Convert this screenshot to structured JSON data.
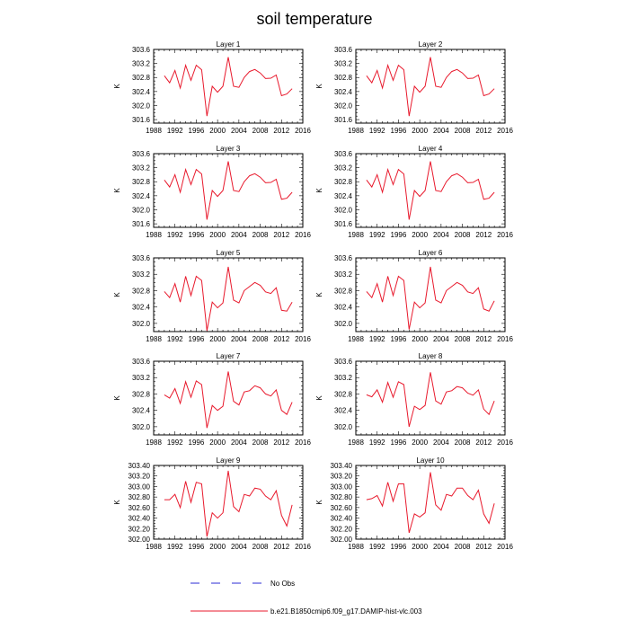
{
  "title": "soil temperature",
  "legend": {
    "obs_label": "No Obs",
    "model_label": "b.e21.B1850cmip6.f09_g17.DAMIP-hist-vlc.003",
    "obs_color": "#2b2bd6",
    "model_color": "#e8192c"
  },
  "chart_data": [
    {
      "type": "line",
      "title": "Layer 1",
      "ylabel": "K",
      "xlim": [
        1988,
        2016
      ],
      "ylim": [
        301.5,
        303.6
      ],
      "x_ticks": [
        "1988",
        "1992",
        "1996",
        "2000",
        "2004",
        "2008",
        "2012",
        "2016"
      ],
      "y_ticks": [
        "301.6",
        "302.0",
        "302.4",
        "302.8",
        "303.2",
        "303.6"
      ],
      "series": [
        {
          "name": "b.e21.B1850cmip6.f09_g17.DAMIP-hist-vlc.003",
          "x": [
            1990,
            1991,
            1992,
            1993,
            1994,
            1995,
            1996,
            1997,
            1998,
            1999,
            2000,
            2001,
            2002,
            2003,
            2004,
            2005,
            2006,
            2007,
            2008,
            2009,
            2010,
            2011,
            2012,
            2013,
            2014
          ],
          "values": [
            302.85,
            302.65,
            303.0,
            302.5,
            303.15,
            302.72,
            303.15,
            303.02,
            301.7,
            302.55,
            302.38,
            302.55,
            303.38,
            302.55,
            302.52,
            302.8,
            302.97,
            303.03,
            302.93,
            302.77,
            302.78,
            302.87,
            302.28,
            302.33,
            302.48
          ]
        }
      ]
    },
    {
      "type": "line",
      "title": "Layer 2",
      "ylabel": "K",
      "xlim": [
        1988,
        2016
      ],
      "ylim": [
        301.5,
        303.6
      ],
      "x_ticks": [
        "1988",
        "1992",
        "1996",
        "2000",
        "2004",
        "2008",
        "2012",
        "2016"
      ],
      "y_ticks": [
        "301.6",
        "302.0",
        "302.4",
        "302.8",
        "303.2",
        "303.6"
      ],
      "series": [
        {
          "name": "b.e21.B1850cmip6.f09_g17.DAMIP-hist-vlc.003",
          "x": [
            1990,
            1991,
            1992,
            1993,
            1994,
            1995,
            1996,
            1997,
            1998,
            1999,
            2000,
            2001,
            2002,
            2003,
            2004,
            2005,
            2006,
            2007,
            2008,
            2009,
            2010,
            2011,
            2012,
            2013,
            2014
          ],
          "values": [
            302.85,
            302.65,
            303.0,
            302.5,
            303.15,
            302.72,
            303.15,
            303.02,
            301.7,
            302.55,
            302.38,
            302.55,
            303.38,
            302.55,
            302.52,
            302.8,
            302.97,
            303.03,
            302.93,
            302.77,
            302.78,
            302.87,
            302.28,
            302.33,
            302.48
          ]
        }
      ]
    },
    {
      "type": "line",
      "title": "Layer 3",
      "ylabel": "K",
      "xlim": [
        1988,
        2016
      ],
      "ylim": [
        301.5,
        303.6
      ],
      "x_ticks": [
        "1988",
        "1992",
        "1996",
        "2000",
        "2004",
        "2008",
        "2012",
        "2016"
      ],
      "y_ticks": [
        "301.6",
        "302.0",
        "302.4",
        "302.8",
        "303.2",
        "303.6"
      ],
      "series": [
        {
          "name": "b.e21.B1850cmip6.f09_g17.DAMIP-hist-vlc.003",
          "x": [
            1990,
            1991,
            1992,
            1993,
            1994,
            1995,
            1996,
            1997,
            1998,
            1999,
            2000,
            2001,
            2002,
            2003,
            2004,
            2005,
            2006,
            2007,
            2008,
            2009,
            2010,
            2011,
            2012,
            2013,
            2014
          ],
          "values": [
            302.85,
            302.65,
            303.0,
            302.5,
            303.15,
            302.72,
            303.15,
            303.02,
            301.72,
            302.55,
            302.38,
            302.55,
            303.38,
            302.55,
            302.52,
            302.8,
            302.97,
            303.03,
            302.93,
            302.77,
            302.78,
            302.87,
            302.3,
            302.33,
            302.5
          ]
        }
      ]
    },
    {
      "type": "line",
      "title": "Layer 4",
      "ylabel": "K",
      "xlim": [
        1988,
        2016
      ],
      "ylim": [
        301.5,
        303.6
      ],
      "x_ticks": [
        "1988",
        "1992",
        "1996",
        "2000",
        "2004",
        "2008",
        "2012",
        "2016"
      ],
      "y_ticks": [
        "301.6",
        "302.0",
        "302.4",
        "302.8",
        "303.2",
        "303.6"
      ],
      "series": [
        {
          "name": "b.e21.B1850cmip6.f09_g17.DAMIP-hist-vlc.003",
          "x": [
            1990,
            1991,
            1992,
            1993,
            1994,
            1995,
            1996,
            1997,
            1998,
            1999,
            2000,
            2001,
            2002,
            2003,
            2004,
            2005,
            2006,
            2007,
            2008,
            2009,
            2010,
            2011,
            2012,
            2013,
            2014
          ],
          "values": [
            302.85,
            302.65,
            303.0,
            302.5,
            303.15,
            302.72,
            303.15,
            303.02,
            301.72,
            302.55,
            302.38,
            302.55,
            303.38,
            302.55,
            302.52,
            302.8,
            302.97,
            303.03,
            302.93,
            302.77,
            302.78,
            302.87,
            302.3,
            302.33,
            302.5
          ]
        }
      ]
    },
    {
      "type": "line",
      "title": "Layer 5",
      "ylabel": "K",
      "xlim": [
        1988,
        2016
      ],
      "ylim": [
        301.8,
        303.6
      ],
      "x_ticks": [
        "1988",
        "1992",
        "1996",
        "2000",
        "2004",
        "2008",
        "2012",
        "2016"
      ],
      "y_ticks": [
        "302.0",
        "302.4",
        "302.8",
        "303.2",
        "303.6"
      ],
      "series": [
        {
          "name": "b.e21.B1850cmip6.f09_g17.DAMIP-hist-vlc.003",
          "x": [
            1990,
            1991,
            1992,
            1993,
            1994,
            1995,
            1996,
            1997,
            1998,
            1999,
            2000,
            2001,
            2002,
            2003,
            2004,
            2005,
            2006,
            2007,
            2008,
            2009,
            2010,
            2011,
            2012,
            2013,
            2014
          ],
          "values": [
            302.78,
            302.63,
            302.97,
            302.52,
            303.15,
            302.68,
            303.15,
            303.05,
            301.82,
            302.52,
            302.38,
            302.5,
            303.38,
            302.57,
            302.5,
            302.8,
            302.9,
            303.0,
            302.93,
            302.77,
            302.73,
            302.87,
            302.32,
            302.3,
            302.52
          ]
        }
      ]
    },
    {
      "type": "line",
      "title": "Layer 6",
      "ylabel": "K",
      "xlim": [
        1988,
        2016
      ],
      "ylim": [
        301.8,
        303.6
      ],
      "x_ticks": [
        "1988",
        "1992",
        "1996",
        "2000",
        "2004",
        "2008",
        "2012",
        "2016"
      ],
      "y_ticks": [
        "302.0",
        "302.4",
        "302.8",
        "303.2",
        "303.6"
      ],
      "series": [
        {
          "name": "b.e21.B1850cmip6.f09_g17.DAMIP-hist-vlc.003",
          "x": [
            1990,
            1991,
            1992,
            1993,
            1994,
            1995,
            1996,
            1997,
            1998,
            1999,
            2000,
            2001,
            2002,
            2003,
            2004,
            2005,
            2006,
            2007,
            2008,
            2009,
            2010,
            2011,
            2012,
            2013,
            2014
          ],
          "values": [
            302.78,
            302.63,
            302.97,
            302.52,
            303.15,
            302.68,
            303.15,
            303.05,
            301.85,
            302.52,
            302.38,
            302.5,
            303.38,
            302.57,
            302.5,
            302.8,
            302.9,
            303.0,
            302.93,
            302.77,
            302.73,
            302.87,
            302.35,
            302.3,
            302.55
          ]
        }
      ]
    },
    {
      "type": "line",
      "title": "Layer 7",
      "ylabel": "K",
      "xlim": [
        1988,
        2016
      ],
      "ylim": [
        301.8,
        303.6
      ],
      "x_ticks": [
        "1988",
        "1992",
        "1996",
        "2000",
        "2004",
        "2008",
        "2012",
        "2016"
      ],
      "y_ticks": [
        "302.0",
        "302.4",
        "302.8",
        "303.2",
        "303.6"
      ],
      "series": [
        {
          "name": "b.e21.B1850cmip6.f09_g17.DAMIP-hist-vlc.003",
          "x": [
            1990,
            1991,
            1992,
            1993,
            1994,
            1995,
            1996,
            1997,
            1998,
            1999,
            2000,
            2001,
            2002,
            2003,
            2004,
            2005,
            2006,
            2007,
            2008,
            2009,
            2010,
            2011,
            2012,
            2013,
            2014
          ],
          "values": [
            302.78,
            302.7,
            302.93,
            302.57,
            303.1,
            302.72,
            303.12,
            303.03,
            301.97,
            302.52,
            302.4,
            302.5,
            303.35,
            302.62,
            302.53,
            302.85,
            302.88,
            303.0,
            302.95,
            302.8,
            302.75,
            302.9,
            302.4,
            302.3,
            302.6
          ]
        }
      ]
    },
    {
      "type": "line",
      "title": "Layer 8",
      "ylabel": "K",
      "xlim": [
        1988,
        2016
      ],
      "ylim": [
        301.8,
        303.6
      ],
      "x_ticks": [
        "1988",
        "1992",
        "1996",
        "2000",
        "2004",
        "2008",
        "2012",
        "2016"
      ],
      "y_ticks": [
        "302.0",
        "302.4",
        "302.8",
        "303.2",
        "303.6"
      ],
      "series": [
        {
          "name": "b.e21.B1850cmip6.f09_g17.DAMIP-hist-vlc.003",
          "x": [
            1990,
            1991,
            1992,
            1993,
            1994,
            1995,
            1996,
            1997,
            1998,
            1999,
            2000,
            2001,
            2002,
            2003,
            2004,
            2005,
            2006,
            2007,
            2008,
            2009,
            2010,
            2011,
            2012,
            2013,
            2014
          ],
          "values": [
            302.78,
            302.73,
            302.9,
            302.6,
            303.08,
            302.72,
            303.1,
            303.03,
            302.0,
            302.5,
            302.42,
            302.52,
            303.33,
            302.63,
            302.55,
            302.85,
            302.88,
            302.98,
            302.95,
            302.82,
            302.77,
            302.9,
            302.43,
            302.3,
            302.63
          ]
        }
      ]
    },
    {
      "type": "line",
      "title": "Layer 9",
      "ylabel": "K",
      "xlim": [
        1988,
        2016
      ],
      "ylim": [
        302.0,
        303.4
      ],
      "x_ticks": [
        "1988",
        "1992",
        "1996",
        "2000",
        "2004",
        "2008",
        "2012",
        "2016"
      ],
      "y_ticks": [
        "302.00",
        "302.20",
        "302.40",
        "302.60",
        "302.80",
        "303.00",
        "303.20",
        "303.40"
      ],
      "series": [
        {
          "name": "b.e21.B1850cmip6.f09_g17.DAMIP-hist-vlc.003",
          "x": [
            1990,
            1991,
            1992,
            1993,
            1994,
            1995,
            1996,
            1997,
            1998,
            1999,
            2000,
            2001,
            2002,
            2003,
            2004,
            2005,
            2006,
            2007,
            2008,
            2009,
            2010,
            2011,
            2012,
            2013,
            2014
          ],
          "values": [
            302.75,
            302.75,
            302.85,
            302.6,
            303.1,
            302.7,
            303.08,
            303.05,
            302.05,
            302.5,
            302.4,
            302.5,
            303.3,
            302.62,
            302.52,
            302.85,
            302.82,
            302.97,
            302.95,
            302.82,
            302.75,
            302.92,
            302.45,
            302.25,
            302.65
          ]
        }
      ]
    },
    {
      "type": "line",
      "title": "Layer 10",
      "ylabel": "K",
      "xlim": [
        1988,
        2016
      ],
      "ylim": [
        302.0,
        303.4
      ],
      "x_ticks": [
        "1988",
        "1992",
        "1996",
        "2000",
        "2004",
        "2008",
        "2012",
        "2016"
      ],
      "y_ticks": [
        "302.00",
        "302.20",
        "302.40",
        "302.60",
        "302.80",
        "303.00",
        "303.20",
        "303.40"
      ],
      "series": [
        {
          "name": "b.e21.B1850cmip6.f09_g17.DAMIP-hist-vlc.003",
          "x": [
            1990,
            1991,
            1992,
            1993,
            1994,
            1995,
            1996,
            1997,
            1998,
            1999,
            2000,
            2001,
            2002,
            2003,
            2004,
            2005,
            2006,
            2007,
            2008,
            2009,
            2010,
            2011,
            2012,
            2013,
            2014
          ],
          "values": [
            302.75,
            302.77,
            302.83,
            302.63,
            303.08,
            302.72,
            303.05,
            303.05,
            302.12,
            302.48,
            302.42,
            302.5,
            303.27,
            302.65,
            302.55,
            302.85,
            302.82,
            302.97,
            302.97,
            302.83,
            302.75,
            302.93,
            302.48,
            302.3,
            302.68
          ]
        }
      ]
    }
  ]
}
